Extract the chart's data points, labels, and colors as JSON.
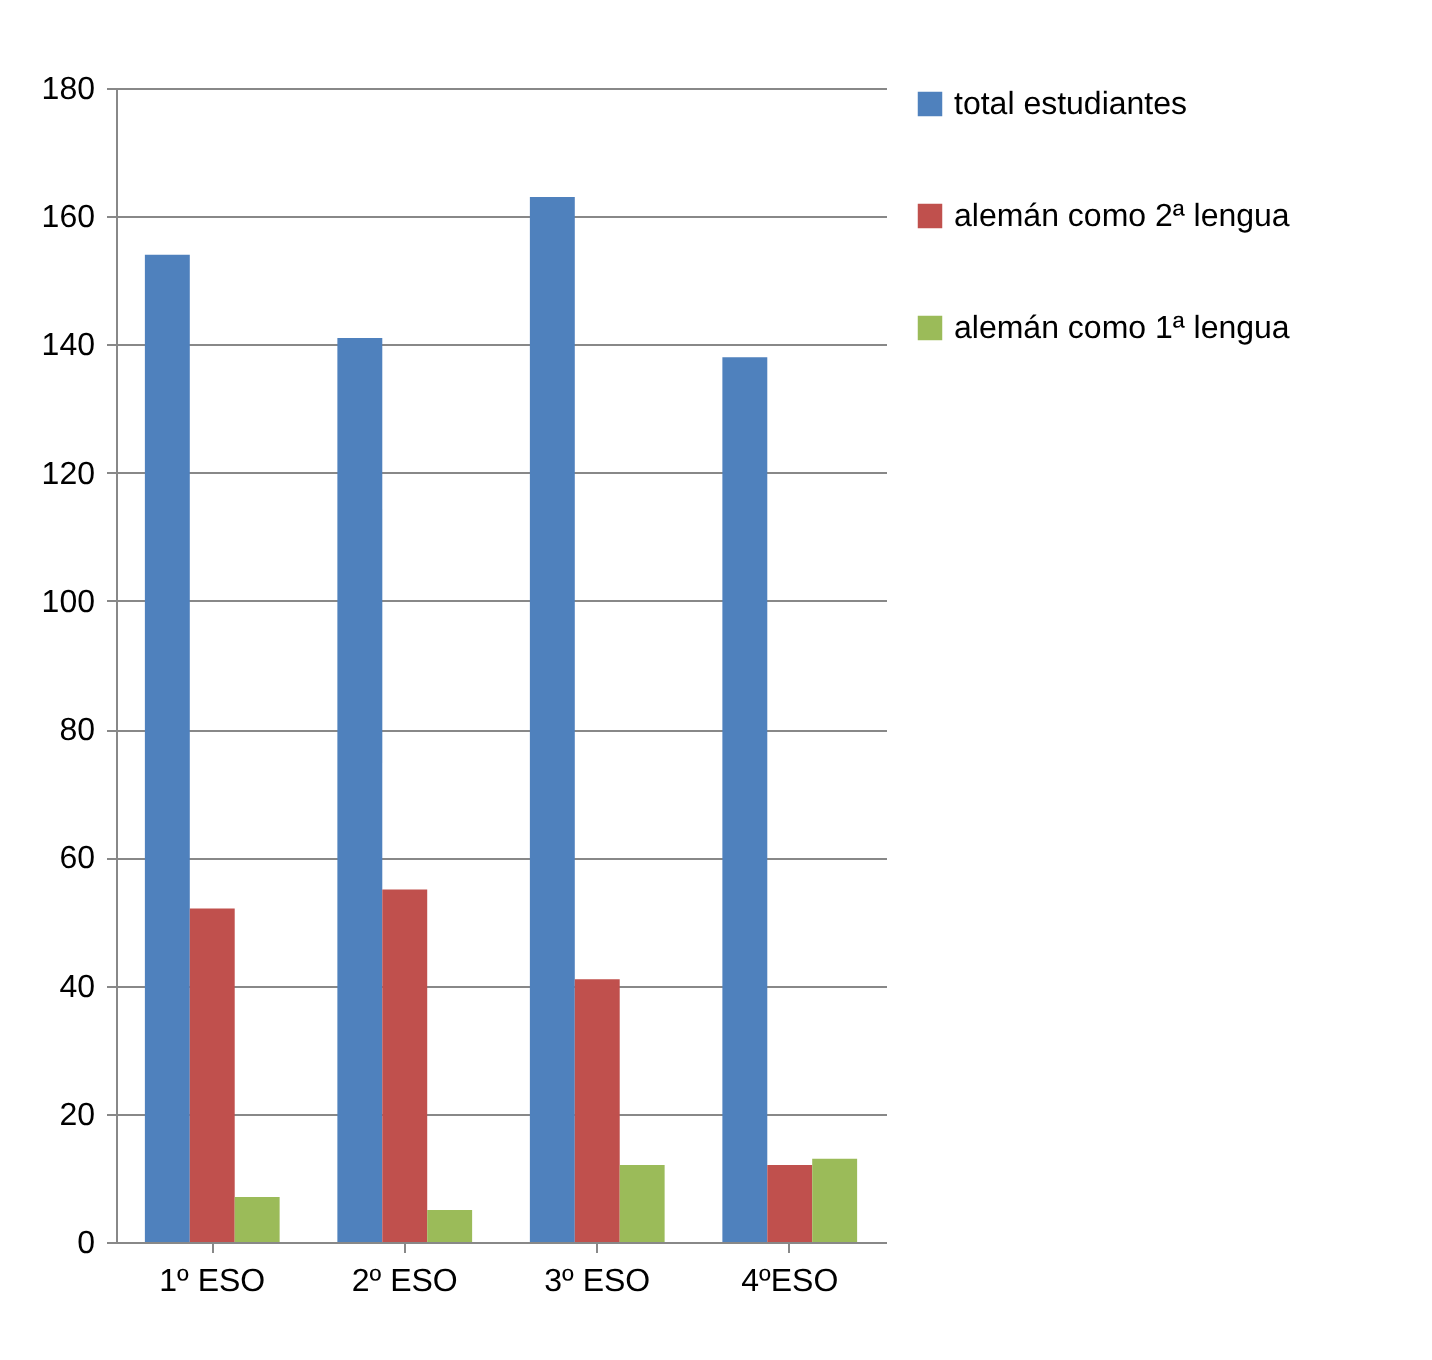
{
  "chart_data": {
    "type": "bar",
    "categories": [
      "1º ESO",
      "2º ESO",
      "3º ESO",
      "4ºESO"
    ],
    "series": [
      {
        "name": "total estudiantes",
        "color": "#4f81bd",
        "values": [
          154,
          141,
          163,
          138
        ]
      },
      {
        "name": "alemán como 2ª lengua",
        "color": "#c0504d",
        "values": [
          52,
          55,
          41,
          12
        ]
      },
      {
        "name": "alemán como 1ª lengua",
        "color": "#9bbb59",
        "values": [
          7,
          5,
          12,
          13
        ]
      }
    ],
    "ylim": [
      0,
      180
    ],
    "yticks": [
      0,
      20,
      40,
      60,
      80,
      100,
      120,
      140,
      160,
      180
    ],
    "grid": "y",
    "legend": "right"
  }
}
